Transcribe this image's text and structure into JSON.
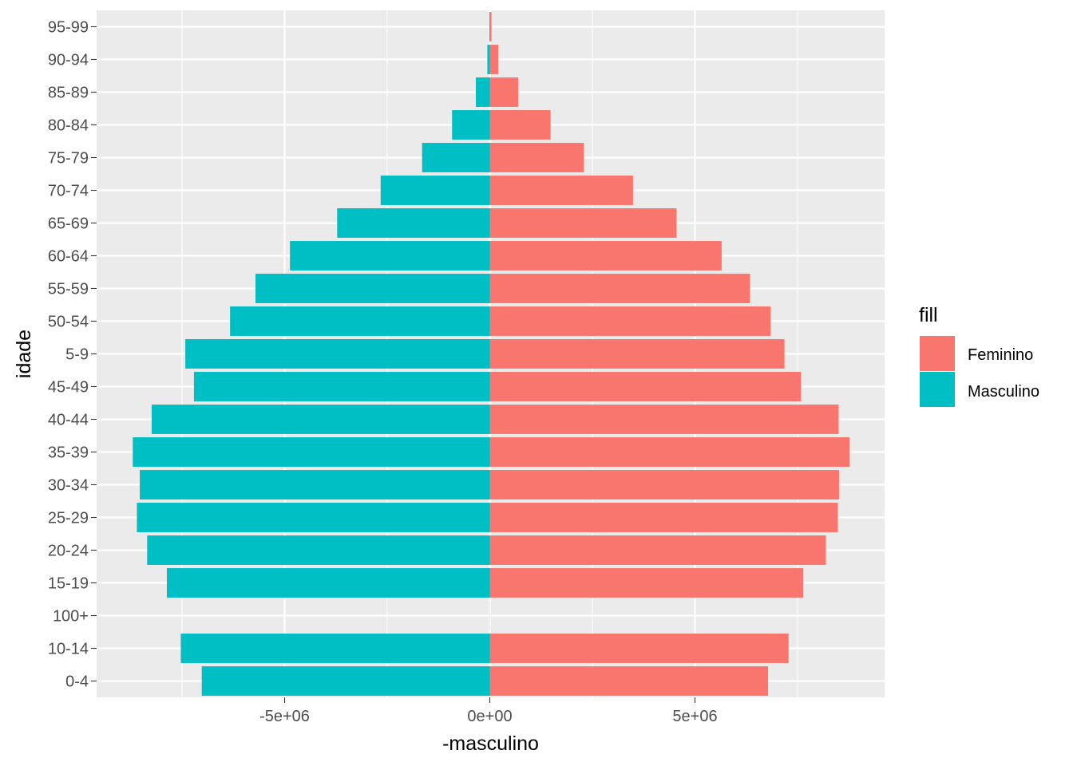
{
  "chart_data": {
    "type": "bar",
    "orientation": "horizontal",
    "categories": [
      "0-4",
      "10-14",
      "100+",
      "15-19",
      "20-24",
      "25-29",
      "30-34",
      "35-39",
      "40-44",
      "45-49",
      "5-9",
      "50-54",
      "55-59",
      "60-64",
      "65-69",
      "70-74",
      "75-79",
      "80-84",
      "85-89",
      "90-94",
      "95-99"
    ],
    "series": [
      {
        "name": "Feminino",
        "color": "#F8766D",
        "values": [
          6780000,
          7280000,
          3000,
          7640000,
          8190000,
          8480000,
          8510000,
          8770000,
          8500000,
          7580000,
          7180000,
          6840000,
          6340000,
          5650000,
          4550000,
          3490000,
          2290000,
          1480000,
          690000,
          210000,
          40000
        ]
      },
      {
        "name": "Masculino",
        "color": "#00BFC4",
        "values": [
          -7020000,
          -7530000,
          -1000,
          -7870000,
          -8350000,
          -8600000,
          -8530000,
          -8700000,
          -8240000,
          -7210000,
          -7420000,
          -6330000,
          -5710000,
          -4870000,
          -3720000,
          -2660000,
          -1650000,
          -920000,
          -340000,
          -60000,
          -10000
        ]
      }
    ],
    "xlabel": "-masculino",
    "ylabel": "idade",
    "xlim": [
      -9600000,
      9600000
    ],
    "xticks": [
      {
        "value": -5000000,
        "label": "-5e+06"
      },
      {
        "value": 0,
        "label": "0e+00"
      },
      {
        "value": 5000000,
        "label": "5e+06"
      }
    ],
    "grid": true,
    "legend": {
      "title": "fill",
      "position": "right",
      "entries": [
        {
          "label": "Feminino",
          "color": "#F8766D"
        },
        {
          "label": "Masculino",
          "color": "#00BFC4"
        }
      ]
    }
  },
  "theme": {
    "panel_bg": "#EBEBEB",
    "grid_major": "#FFFFFF",
    "tick_color": "#333333"
  }
}
